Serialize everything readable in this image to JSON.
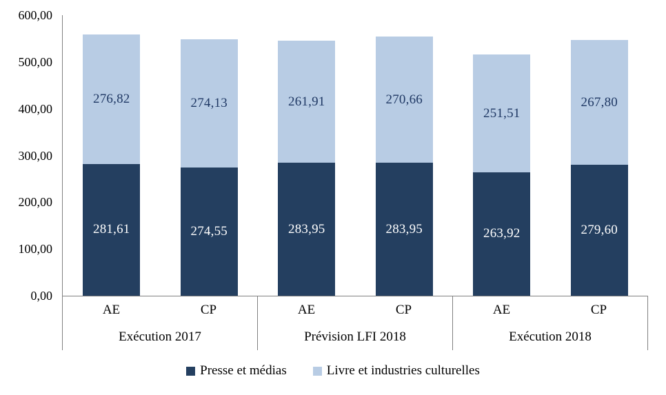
{
  "chart_data": {
    "type": "bar",
    "stacked": true,
    "title": "",
    "xlabel": "",
    "ylabel": "",
    "ylim": [
      0,
      600
    ],
    "y_tick_labels": [
      "600,00",
      "500,00",
      "400,00",
      "300,00",
      "200,00",
      "100,00",
      "0,00"
    ],
    "grid": false,
    "legend_position": "bottom",
    "categories": [
      "AE",
      "CP",
      "AE",
      "CP",
      "AE",
      "CP"
    ],
    "groups": [
      {
        "label": "Exécution 2017",
        "columns": [
          "AE",
          "CP"
        ]
      },
      {
        "label": "Prévision LFI 2018",
        "columns": [
          "AE",
          "CP"
        ]
      },
      {
        "label": "Exécution 2018",
        "columns": [
          "AE",
          "CP"
        ]
      }
    ],
    "series": [
      {
        "name": "Presse et médias",
        "color": "#243F60",
        "label_color": "#FFFFFF",
        "values": [
          281.61,
          274.55,
          283.95,
          283.95,
          263.92,
          279.6
        ],
        "value_labels": [
          "281,61",
          "274,55",
          "283,95",
          "283,95",
          "263,92",
          "279,60"
        ]
      },
      {
        "name": "Livre et industries culturelles",
        "color": "#B8CCE4",
        "label_color": "#1F3864",
        "values": [
          276.82,
          274.13,
          261.91,
          270.66,
          251.51,
          267.8
        ],
        "value_labels": [
          "276,82",
          "274,13",
          "261,91",
          "270,66",
          "251,51",
          "267,80"
        ]
      }
    ]
  },
  "colors": {
    "axis_line": "#808080",
    "table_border": "#808080",
    "tick_text": "#000000",
    "background": "#FFFFFF"
  }
}
